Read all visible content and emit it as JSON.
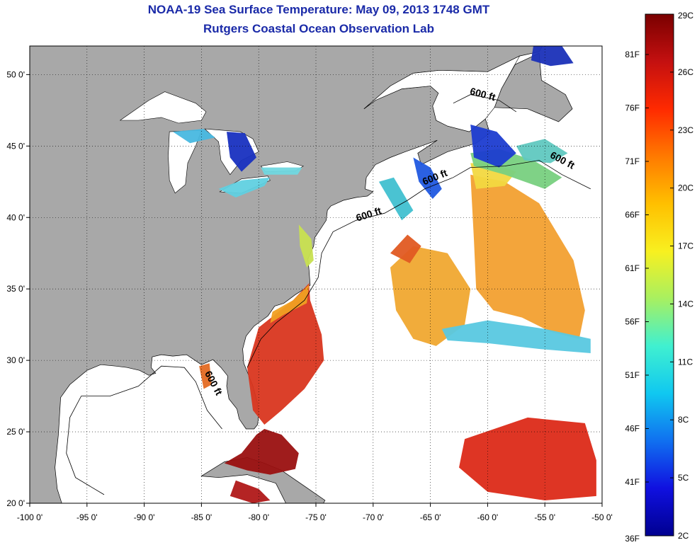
{
  "title": {
    "line1": "NOAA-19 Sea Surface Temperature:  May 09, 2013 1748 GMT",
    "line2": "Rutgers Coastal Ocean Observation Lab"
  },
  "map": {
    "lon_range": [
      -100,
      -50
    ],
    "lat_range": [
      20,
      52
    ],
    "x_ticks": [
      {
        "lon": -100,
        "label": "-100 0'"
      },
      {
        "lon": -95,
        "label": "-95 0'"
      },
      {
        "lon": -90,
        "label": "-90 0'"
      },
      {
        "lon": -85,
        "label": "-85 0'"
      },
      {
        "lon": -80,
        "label": "-80 0'"
      },
      {
        "lon": -75,
        "label": "-75 0'"
      },
      {
        "lon": -70,
        "label": "-70 0'"
      },
      {
        "lon": -65,
        "label": "-65 0'"
      },
      {
        "lon": -60,
        "label": "-60 0'"
      },
      {
        "lon": -55,
        "label": "-55 0'"
      },
      {
        "lon": -50,
        "label": "-50 0'"
      }
    ],
    "y_ticks": [
      {
        "lat": 20,
        "label": "20 0'"
      },
      {
        "lat": 25,
        "label": "25 0'"
      },
      {
        "lat": 30,
        "label": "30 0'"
      },
      {
        "lat": 35,
        "label": "35 0'"
      },
      {
        "lat": 40,
        "label": "40 0'"
      },
      {
        "lat": 45,
        "label": "45 0'"
      },
      {
        "lat": 50,
        "label": "50 0'"
      }
    ],
    "land_color": "#a8a8a8",
    "ocean_color": "#ffffff",
    "isobath_labels": [
      {
        "text": "600 ft",
        "lon": -60.5,
        "lat": 48.4,
        "angle": 15
      },
      {
        "text": "600 ft",
        "lon": -53.6,
        "lat": 43.8,
        "angle": 28
      },
      {
        "text": "600 ft",
        "lon": -64.5,
        "lat": 42.6,
        "angle": -22
      },
      {
        "text": "600 ft",
        "lon": -70.3,
        "lat": 40.0,
        "angle": -18
      },
      {
        "text": "600 ft",
        "lon": -84.2,
        "lat": 28.3,
        "angle": 62
      }
    ],
    "sst_patches": [
      {
        "name": "florida-atlantic-warm",
        "color": "#d9361f",
        "points": [
          [
            -80.5,
            26.5
          ],
          [
            -81.0,
            29.5
          ],
          [
            -80.0,
            32.3
          ],
          [
            -77.0,
            34.2
          ],
          [
            -75.6,
            35.4
          ],
          [
            -75.5,
            34.2
          ],
          [
            -74.5,
            31.8
          ],
          [
            -74.3,
            30.0
          ],
          [
            -76.0,
            28.0
          ],
          [
            -78.0,
            26.5
          ],
          [
            -79.5,
            25.5
          ]
        ]
      },
      {
        "name": "gulf-stream-edge",
        "color": "#f0a022",
        "points": [
          [
            -77.0,
            34.2
          ],
          [
            -75.6,
            35.3
          ],
          [
            -75.8,
            34.0
          ],
          [
            -77.8,
            33.2
          ],
          [
            -79.0,
            32.6
          ],
          [
            -78.8,
            33.4
          ]
        ]
      },
      {
        "name": "florida-straits-hot",
        "color": "#9a1010",
        "points": [
          [
            -83.0,
            22.8
          ],
          [
            -81.5,
            23.5
          ],
          [
            -80.2,
            24.8
          ],
          [
            -79.5,
            25.2
          ],
          [
            -78.0,
            24.8
          ],
          [
            -76.5,
            23.5
          ],
          [
            -76.8,
            22.4
          ],
          [
            -79.0,
            22.0
          ],
          [
            -81.0,
            22.3
          ]
        ]
      },
      {
        "name": "caribbean-hot",
        "color": "#b01818",
        "points": [
          [
            -82.0,
            21.6
          ],
          [
            -80.0,
            21.0
          ],
          [
            -79.0,
            20.2
          ],
          [
            -80.5,
            20.0
          ],
          [
            -82.5,
            20.5
          ]
        ]
      },
      {
        "name": "gulf-hot-patch",
        "color": "#e46a22",
        "points": [
          [
            -85.2,
            29.6
          ],
          [
            -84.3,
            29.8
          ],
          [
            -84.1,
            28.3
          ],
          [
            -84.8,
            28.0
          ]
        ]
      },
      {
        "name": "mid-atlantic-orange",
        "color": "#f0a830",
        "points": [
          [
            -68.5,
            36.5
          ],
          [
            -66.5,
            38.0
          ],
          [
            -63.5,
            37.5
          ],
          [
            -61.5,
            35.0
          ],
          [
            -62.0,
            32.5
          ],
          [
            -64.5,
            31.0
          ],
          [
            -66.5,
            31.5
          ],
          [
            -68.0,
            33.5
          ]
        ]
      },
      {
        "name": "mid-atlantic-red-spots",
        "color": "#e05a22",
        "points": [
          [
            -68.5,
            37.5
          ],
          [
            -67.0,
            38.8
          ],
          [
            -65.8,
            38.0
          ],
          [
            -66.8,
            36.8
          ]
        ]
      },
      {
        "name": "east-orange-large",
        "color": "#f2a030",
        "points": [
          [
            -61.5,
            43.0
          ],
          [
            -58.5,
            42.5
          ],
          [
            -55.5,
            41.0
          ],
          [
            -52.5,
            37.0
          ],
          [
            -51.5,
            33.5
          ],
          [
            -52.0,
            31.5
          ],
          [
            -54.5,
            32.0
          ],
          [
            -57.0,
            33.0
          ],
          [
            -59.5,
            33.5
          ],
          [
            -61.0,
            35.0
          ],
          [
            -61.2,
            38.5
          ]
        ]
      },
      {
        "name": "east-yellow",
        "color": "#f2d840",
        "points": [
          [
            -61.5,
            43.8
          ],
          [
            -59.5,
            43.8
          ],
          [
            -57.5,
            43.2
          ],
          [
            -58.5,
            42.2
          ],
          [
            -61.0,
            42.0
          ]
        ]
      },
      {
        "name": "east-green",
        "color": "#78d080",
        "points": [
          [
            -61.5,
            44.5
          ],
          [
            -59.0,
            44.8
          ],
          [
            -56.0,
            44.0
          ],
          [
            -53.5,
            42.8
          ],
          [
            -55.0,
            42.0
          ],
          [
            -58.5,
            43.0
          ],
          [
            -61.2,
            43.6
          ]
        ]
      },
      {
        "name": "east-cyan-band",
        "color": "#58c8e0",
        "points": [
          [
            -64.0,
            32.2
          ],
          [
            -60.0,
            32.8
          ],
          [
            -55.0,
            32.2
          ],
          [
            -51.0,
            31.5
          ],
          [
            -51.0,
            30.5
          ],
          [
            -55.5,
            30.8
          ],
          [
            -60.0,
            31.2
          ],
          [
            -63.5,
            31.4
          ]
        ]
      },
      {
        "name": "south-atlantic-hot",
        "color": "#dc2a18",
        "points": [
          [
            -62.0,
            24.5
          ],
          [
            -56.5,
            26.0
          ],
          [
            -51.5,
            25.6
          ],
          [
            -50.5,
            23.0
          ],
          [
            -50.5,
            20.5
          ],
          [
            -55.0,
            20.2
          ],
          [
            -60.0,
            20.8
          ],
          [
            -62.5,
            22.5
          ]
        ]
      },
      {
        "name": "georges-bank-blue",
        "color": "#2058e0",
        "points": [
          [
            -66.5,
            44.2
          ],
          [
            -65.0,
            43.5
          ],
          [
            -64.0,
            42.0
          ],
          [
            -64.8,
            41.3
          ],
          [
            -66.0,
            42.5
          ]
        ]
      },
      {
        "name": "scotian-cyan",
        "color": "#40c0d0",
        "points": [
          [
            -69.5,
            42.5
          ],
          [
            -68.2,
            42.8
          ],
          [
            -66.5,
            40.5
          ],
          [
            -67.5,
            39.8
          ]
        ]
      },
      {
        "name": "nova-scotia-blue",
        "color": "#1c3cd0",
        "points": [
          [
            -61.5,
            46.5
          ],
          [
            -59.2,
            46.0
          ],
          [
            -57.5,
            44.5
          ],
          [
            -59.0,
            43.5
          ],
          [
            -61.2,
            44.2
          ]
        ]
      },
      {
        "name": "east-cyan-offshore",
        "color": "#60c8c0",
        "points": [
          [
            -57.5,
            45.0
          ],
          [
            -55.0,
            45.5
          ],
          [
            -53.0,
            44.5
          ],
          [
            -54.5,
            43.8
          ],
          [
            -56.8,
            44.0
          ]
        ]
      },
      {
        "name": "labrador-blue",
        "color": "#1a30b8",
        "points": [
          [
            -56.0,
            52.0
          ],
          [
            -53.5,
            52.0
          ],
          [
            -52.5,
            50.8
          ],
          [
            -54.5,
            50.6
          ],
          [
            -56.2,
            51.0
          ]
        ]
      },
      {
        "name": "lake-huron-blue",
        "color": "#1830c0",
        "points": [
          [
            -82.8,
            46.0
          ],
          [
            -81.2,
            45.9
          ],
          [
            -80.2,
            44.2
          ],
          [
            -81.5,
            43.2
          ],
          [
            -82.5,
            44.2
          ]
        ]
      },
      {
        "name": "lake-michigan-cyan",
        "color": "#48b8e0",
        "points": [
          [
            -87.5,
            46.0
          ],
          [
            -84.8,
            46.2
          ],
          [
            -83.8,
            45.6
          ],
          [
            -86.0,
            45.2
          ]
        ]
      },
      {
        "name": "lake-erie-cyan",
        "color": "#60d0e0",
        "points": [
          [
            -83.5,
            42.0
          ],
          [
            -81.5,
            42.6
          ],
          [
            -79.0,
            42.8
          ],
          [
            -79.5,
            42.2
          ],
          [
            -82.0,
            41.4
          ]
        ]
      },
      {
        "name": "lake-ontario-cyan",
        "color": "#70d8e0",
        "points": [
          [
            -79.8,
            43.5
          ],
          [
            -76.2,
            43.5
          ],
          [
            -76.6,
            43.0
          ],
          [
            -79.5,
            43.0
          ]
        ]
      },
      {
        "name": "chesapeake-yellow",
        "color": "#c8e050",
        "points": [
          [
            -76.5,
            39.5
          ],
          [
            -75.4,
            38.5
          ],
          [
            -75.2,
            37.0
          ],
          [
            -75.8,
            36.5
          ],
          [
            -76.4,
            38.0
          ]
        ]
      }
    ]
  },
  "colorbar": {
    "left_labels": [
      "81F",
      "76F",
      "71F",
      "66F",
      "61F",
      "56F",
      "51F",
      "46F",
      "41F",
      "36F"
    ],
    "right_labels": [
      "29C",
      "26C",
      "23C",
      "20C",
      "17C",
      "14C",
      "11C",
      "8C",
      "5C",
      "2C"
    ],
    "stops": [
      "#7a0000",
      "#c41010",
      "#ff2a00",
      "#ff7a00",
      "#ffc000",
      "#f8f020",
      "#a8f060",
      "#40f0d0",
      "#10c8f0",
      "#1070f0",
      "#1010e0",
      "#000090"
    ]
  }
}
